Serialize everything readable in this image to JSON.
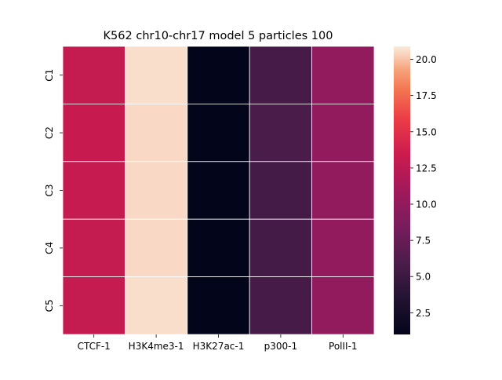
{
  "chart_data": {
    "type": "heatmap",
    "title": "K562 chr10-chr17 model 5 particles 100",
    "xlabel": "",
    "ylabel": "",
    "columns": [
      "CTCF-1",
      "H3K4me3-1",
      "H3K27ac-1",
      "p300-1",
      "PolII-1"
    ],
    "rows": [
      "C1",
      "C2",
      "C3",
      "C4",
      "C5"
    ],
    "values": [
      [
        13.0,
        20.6,
        1.0,
        5.6,
        10.0
      ],
      [
        13.2,
        20.5,
        1.0,
        5.8,
        10.0
      ],
      [
        13.1,
        20.5,
        1.0,
        5.5,
        10.0
      ],
      [
        13.0,
        20.5,
        1.0,
        5.5,
        10.0
      ],
      [
        13.0,
        20.6,
        1.0,
        5.6,
        10.0
      ]
    ],
    "colorbar": {
      "vmin": 1.0,
      "vmax": 20.9,
      "ticks": [
        2.5,
        5.0,
        7.5,
        10.0,
        12.5,
        15.0,
        17.5,
        20.0
      ],
      "tick_labels": [
        "2.5",
        "5.0",
        "7.5",
        "10.0",
        "12.5",
        "15.0",
        "17.5",
        "20.0"
      ],
      "colormap": "rocket"
    },
    "gridlines": "white",
    "grid": false,
    "legend": "colorbar-right"
  }
}
